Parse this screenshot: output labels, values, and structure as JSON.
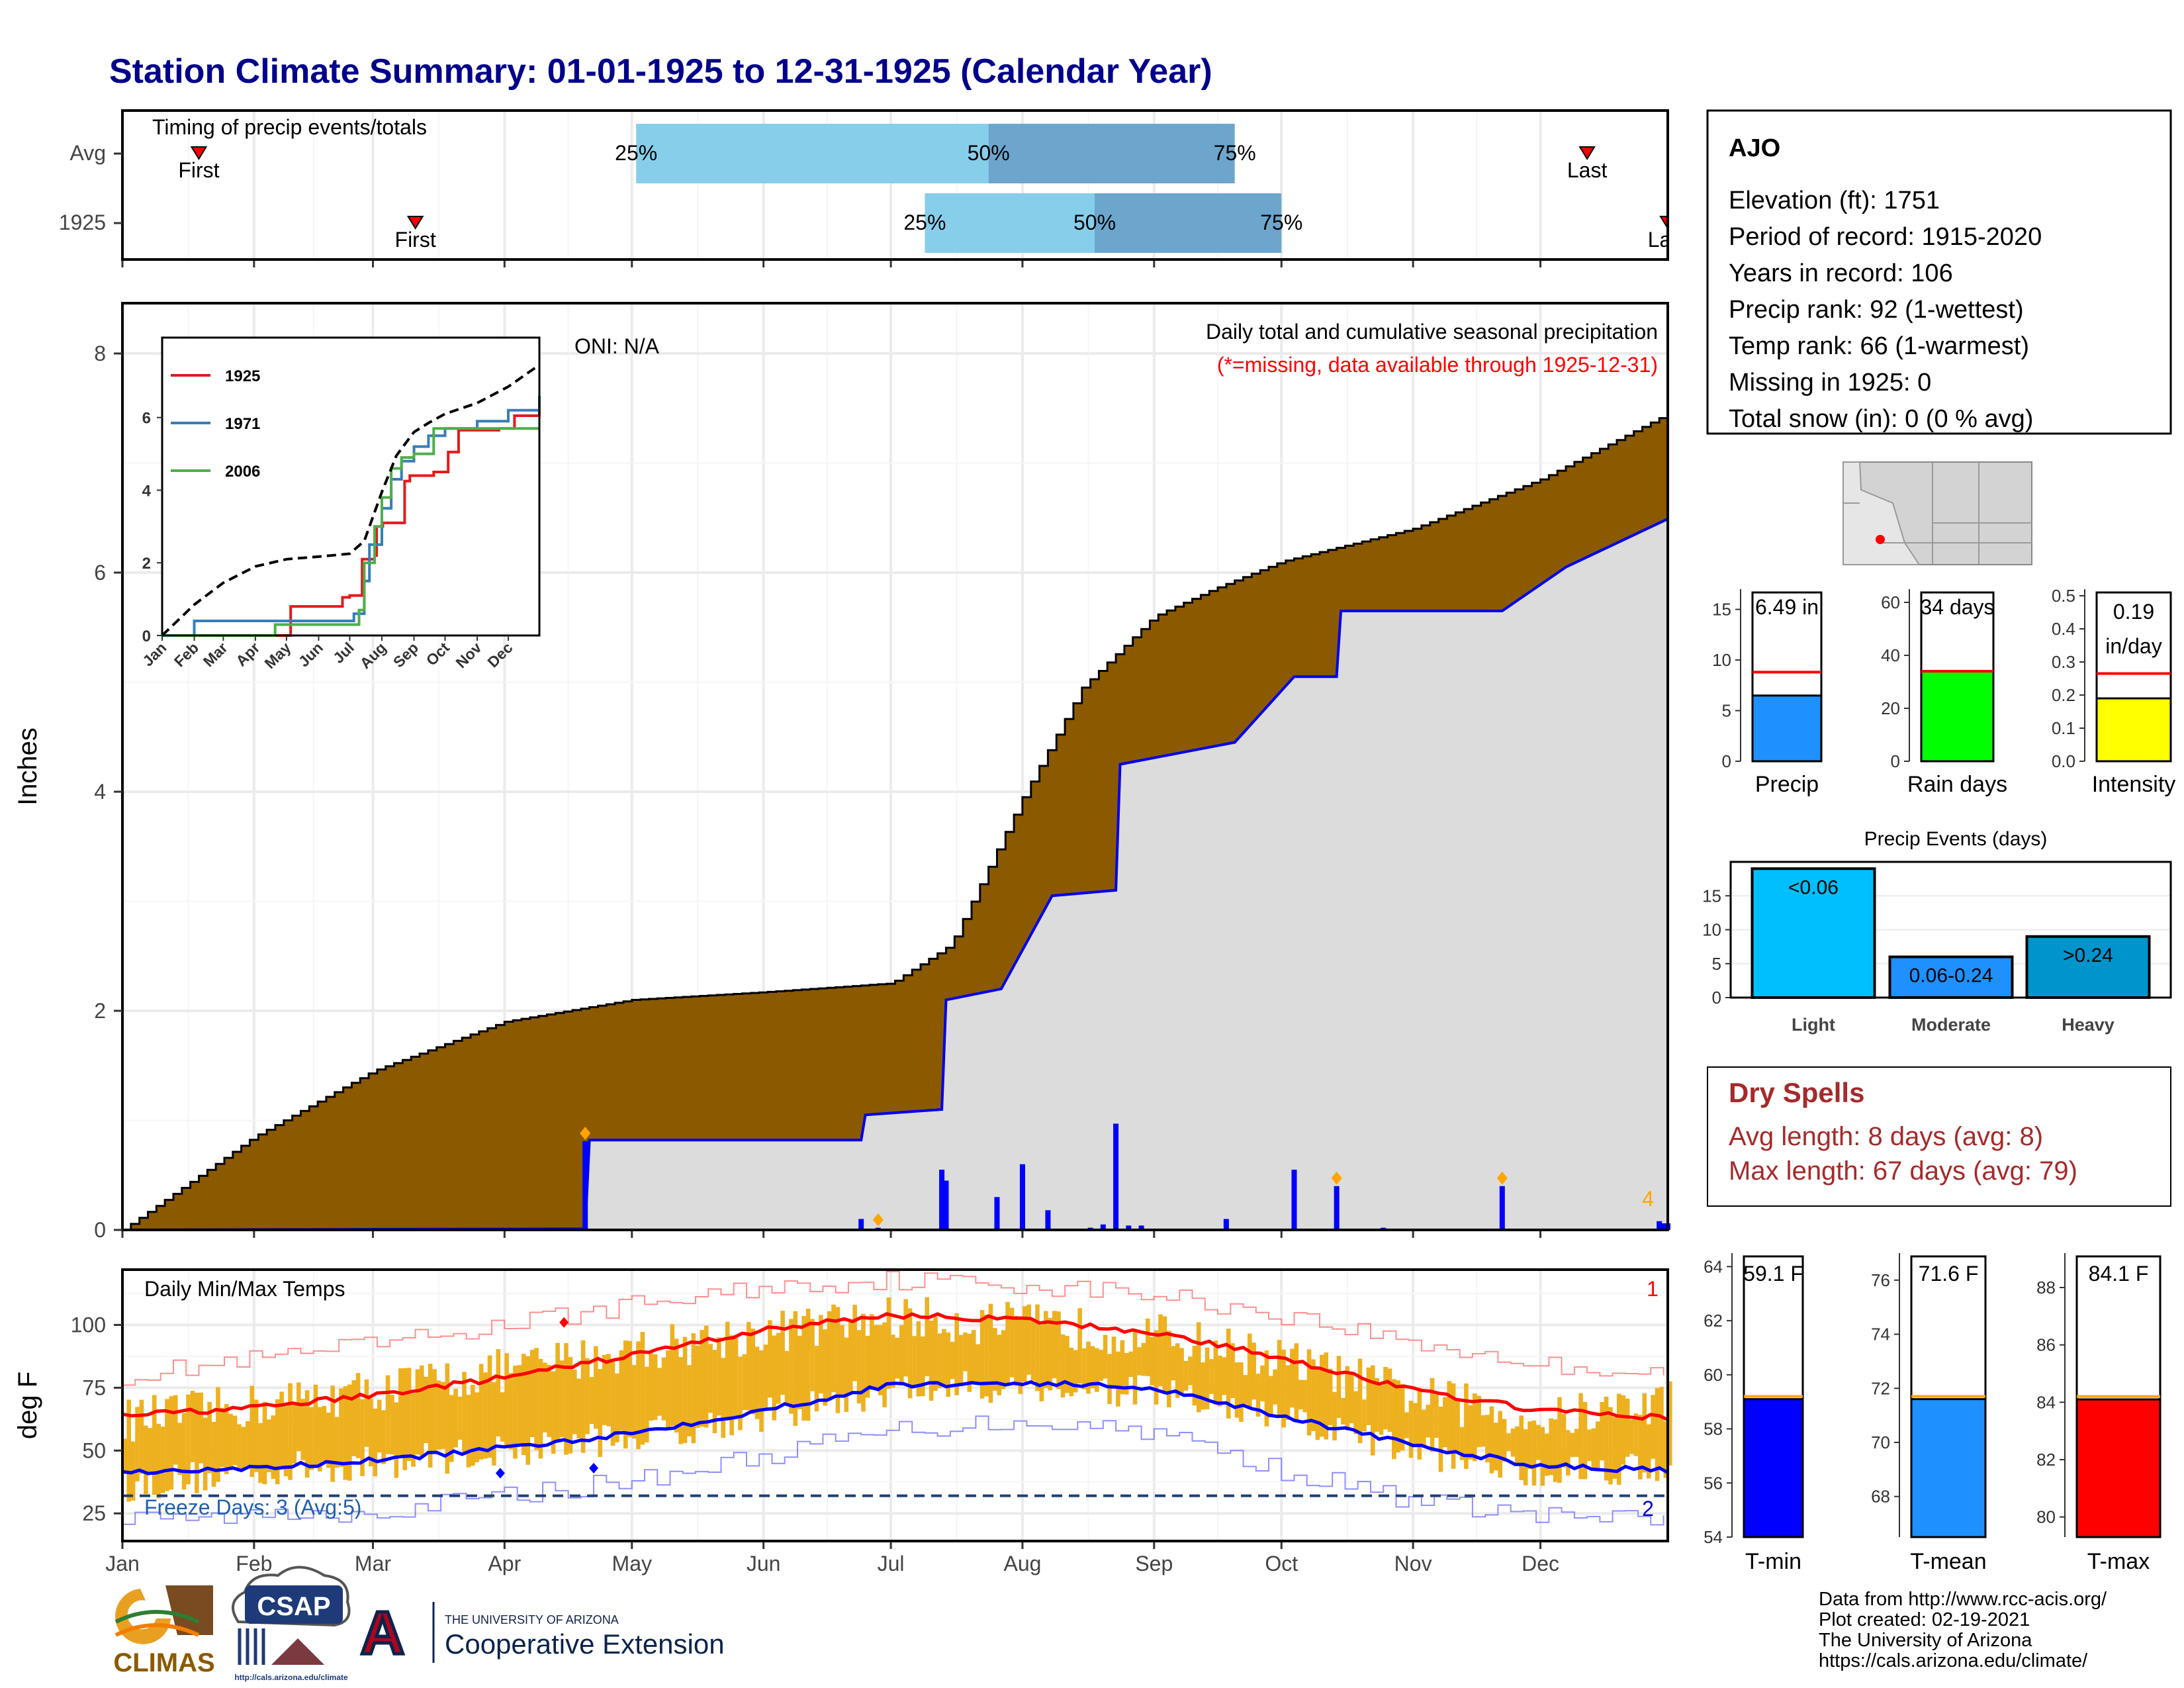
{
  "title": "Station Climate Summary: 01-01-1925 to 12-31-1925 (Calendar Year)",
  "colors": {
    "title": "#00008B",
    "fill_normal": "#8B5A00",
    "fill_observed": "#DCDCDC",
    "obs_line": "#0000EE",
    "bar_light": "#87CEEB",
    "bar_dark": "#6CA6CD",
    "temp_bar": "#EDB120",
    "norm_max": "#FF0000",
    "norm_min": "#0000FF",
    "freeze_line": "#1F3F73",
    "dry_spells": "#A52A2A"
  },
  "timing": {
    "label": "Timing of precip events/totals",
    "rows": [
      {
        "name": "Avg",
        "first_label": "First",
        "last_label": "Last",
        "first_date": "1925-01-19",
        "last_date": "1925-12-12",
        "p25": "1925-05-02",
        "p50": "1925-07-24",
        "p75": "1925-09-20",
        "p25_label": "25%",
        "p50_label": "50%",
        "p75_label": "75%"
      },
      {
        "name": "1925",
        "first_label": "First",
        "last_label": "Last",
        "first_date": "1925-03-11",
        "last_date": "1925-12-31",
        "p25": "1925-07-09",
        "p50": "1925-08-18",
        "p75": "1925-10-01",
        "p25_label": "25%",
        "p50_label": "50%",
        "p75_label": "75%"
      }
    ]
  },
  "precip_panel": {
    "ylabel": "Inches",
    "yticks": [
      "0",
      "2",
      "4",
      "6",
      "8"
    ],
    "oni": "ONI: N/A",
    "note1": "Daily total and cumulative seasonal precipitation",
    "note2": "(*=missing, data available through 1925-12-31)",
    "count_marker": "4"
  },
  "inset": {
    "legend": [
      "1925",
      "1971",
      "2006"
    ],
    "legend_colors": [
      "#E41A1C",
      "#377EB8",
      "#4DAF4A"
    ],
    "yticks": [
      "0",
      "2",
      "4",
      "6"
    ],
    "xticks": [
      "Jan",
      "Feb",
      "Mar",
      "Apr",
      "May",
      "Jun",
      "Jul",
      "Aug",
      "Sep",
      "Oct",
      "Nov",
      "Dec"
    ]
  },
  "temp_panel": {
    "ylabel": "deg F",
    "label": "Daily Min/Max Temps",
    "freeze": "Freeze Days: 3 (Avg:5)",
    "yticks": [
      "25",
      "50",
      "75",
      "100"
    ],
    "count_top": "1",
    "count_bottom": "2"
  },
  "months": [
    "Jan",
    "Feb",
    "Mar",
    "Apr",
    "May",
    "Jun",
    "Jul",
    "Aug",
    "Sep",
    "Oct",
    "Nov",
    "Dec"
  ],
  "station": {
    "name": "AJO",
    "lines": [
      "Elevation (ft): 1751",
      "Period of record: 1915-2020",
      "Years in record: 106",
      "Precip rank: 92 (1-wettest)",
      "Temp rank: 66 (1-warmest)",
      "Missing in 1925: 0",
      "Total snow (in): 0 (0 % avg)"
    ]
  },
  "mini_bars": [
    {
      "label": "Precip",
      "value_text": "6.49 in",
      "value": 6.49,
      "avg": 8.8,
      "ylim": [
        0,
        17
      ],
      "yticks": [
        "0",
        "5",
        "10",
        "15"
      ],
      "color": "#1E90FF"
    },
    {
      "label": "Rain days",
      "value_text": "34 days",
      "value": 34,
      "avg": 34,
      "ylim": [
        0,
        65
      ],
      "yticks": [
        "0",
        "20",
        "40",
        "60"
      ],
      "color": "#00FF00"
    },
    {
      "label": "Intensity",
      "value_text_1": "0.19",
      "value_text_2": "in/day",
      "value": 0.19,
      "avg": 0.265,
      "ylim": [
        0,
        0.52
      ],
      "yticks": [
        "0.0",
        "0.1",
        "0.2",
        "0.3",
        "0.4",
        "0.5"
      ],
      "color": "#FFFF00"
    }
  ],
  "events": {
    "title": "Precip Events (days)",
    "yticks": [
      "0",
      "5",
      "10",
      "15"
    ],
    "bars": [
      {
        "label": "Light",
        "value": 19,
        "text": "<0.06",
        "color": "#00BFFF"
      },
      {
        "label": "Moderate",
        "value": 6,
        "text": "0.06-0.24",
        "color": "#1E90FF"
      },
      {
        "label": "Heavy",
        "value": 9,
        "text": ">0.24",
        "color": "#0094CD"
      }
    ]
  },
  "dry_spells": {
    "title": "Dry Spells",
    "line1": "Avg length: 8 days (avg: 8)",
    "line2": "Max length: 67 days (avg: 79)"
  },
  "temp_bars": [
    {
      "label": "T-min",
      "value_text": "59.1 F",
      "value": 59.1,
      "avg": 59.2,
      "ylim": [
        54,
        64.5
      ],
      "yticks": [
        "54",
        "56",
        "58",
        "60",
        "62",
        "64"
      ],
      "color": "#0000FF"
    },
    {
      "label": "T-mean",
      "value_text": "71.6 F",
      "value": 71.6,
      "avg": 71.7,
      "ylim": [
        66.5,
        77
      ],
      "yticks": [
        "68",
        "70",
        "72",
        "74",
        "76"
      ],
      "color": "#1E90FF"
    },
    {
      "label": "T-max",
      "value_text": "84.1 F",
      "value": 84.1,
      "avg": 84.2,
      "ylim": [
        79.3,
        89.2
      ],
      "yticks": [
        "80",
        "82",
        "84",
        "86",
        "88"
      ],
      "color": "#FF0000"
    }
  ],
  "logos": {
    "climas": "CLIMAS",
    "csap": "CSAP",
    "csap_url": "http://cals.arizona.edu/climate",
    "ua_line1": "THE UNIVERSITY OF ARIZONA",
    "ua_line2": "Cooperative Extension",
    "ua_letter": "A"
  },
  "credits": [
    "Data from http://www.rcc-acis.org/",
    "Plot created: 02-19-2021",
    "The University of Arizona",
    "https://cals.arizona.edu/climate/"
  ],
  "chart_data": [
    {
      "type": "area",
      "title": "Daily total and cumulative seasonal precipitation",
      "ylabel": "Inches",
      "ylim": [
        0,
        8.5
      ],
      "x_unit": "date",
      "series": [
        {
          "name": "1925",
          "x": [
            "1925-01-01",
            "1925-04-20",
            "1925-04-21",
            "1925-06-24",
            "1925-06-25",
            "1925-07-13",
            "1925-07-14",
            "1925-07-27",
            "1925-08-08",
            "1925-08-23",
            "1925-08-24",
            "1925-09-20",
            "1925-10-04",
            "1925-10-14",
            "1925-10-15",
            "1925-11-22",
            "1925-12-07",
            "1925-12-31"
          ],
          "y": [
            0,
            0.01,
            0.82,
            0.82,
            1.05,
            1.1,
            2.1,
            2.2,
            3.05,
            3.1,
            4.25,
            4.45,
            5.05,
            5.05,
            5.65,
            5.65,
            6.05,
            6.49
          ]
        },
        {
          "name": "Avg",
          "x": [
            "1925-01-01",
            "1925-02-01",
            "1925-03-01",
            "1925-04-01",
            "1925-05-01",
            "1925-06-01",
            "1925-07-01",
            "1925-07-15",
            "1925-08-01",
            "1925-08-15",
            "1925-09-01",
            "1925-09-15",
            "1925-10-01",
            "1925-11-01",
            "1925-12-01",
            "1925-12-31"
          ],
          "y": [
            0,
            0.85,
            1.45,
            1.9,
            2.1,
            2.17,
            2.25,
            2.6,
            3.95,
            4.95,
            5.6,
            5.85,
            6.1,
            6.4,
            6.85,
            7.45
          ]
        }
      ],
      "daily_precip": {
        "x": [
          "1925-04-20",
          "1925-06-24",
          "1925-06-28",
          "1925-07-13",
          "1925-07-14",
          "1925-07-26",
          "1925-08-01",
          "1925-08-07",
          "1925-08-17",
          "1925-08-20",
          "1925-08-23",
          "1925-08-26",
          "1925-08-29",
          "1925-09-18",
          "1925-10-04",
          "1925-10-14",
          "1925-10-25",
          "1925-11-22",
          "1925-12-29",
          "1925-12-30",
          "1925-12-31"
        ],
        "y": [
          0.81,
          0.1,
          0.02,
          0.55,
          0.45,
          0.3,
          0.6,
          0.18,
          0.02,
          0.05,
          0.97,
          0.04,
          0.04,
          0.1,
          0.55,
          0.4,
          0.02,
          0.4,
          0.08,
          0.06,
          0.06
        ]
      },
      "markers_x": [
        "1925-04-20",
        "1925-06-28",
        "1925-10-14",
        "1925-11-22"
      ]
    },
    {
      "type": "line",
      "title": "",
      "ylim": [
        0,
        8.2
      ],
      "x_unit": "date",
      "series": [
        {
          "name": "1925",
          "x": [
            "1925-01-01",
            "1925-04-15",
            "1925-05-05",
            "1925-06-10",
            "1925-06-24",
            "1925-07-01",
            "1925-07-13",
            "1925-07-25",
            "1925-07-27",
            "1925-08-02",
            "1925-08-18",
            "1925-08-23",
            "1925-08-28",
            "1925-09-20",
            "1925-10-04",
            "1925-10-14",
            "1925-10-30",
            "1925-11-22",
            "1925-12-07",
            "1925-12-31"
          ],
          "y": [
            0,
            0,
            0.8,
            0.8,
            1.05,
            1.1,
            2.1,
            2.2,
            3.0,
            3.1,
            3.1,
            4.25,
            4.4,
            4.5,
            5.05,
            5.65,
            5.65,
            5.7,
            6.05,
            6.49
          ]
        },
        {
          "name": "1971",
          "x": [
            "1925-01-01",
            "1925-02-01",
            "1925-05-10",
            "1925-07-05",
            "1925-07-15",
            "1925-07-20",
            "1925-08-01",
            "1925-08-10",
            "1925-08-20",
            "1925-09-01",
            "1925-09-15",
            "1925-10-01",
            "1925-11-01",
            "1925-12-01",
            "1925-12-31"
          ],
          "y": [
            0,
            0.4,
            0.4,
            0.6,
            1.5,
            2.5,
            3.5,
            4.3,
            4.8,
            5.2,
            5.5,
            5.7,
            5.9,
            6.2,
            6.6
          ]
        },
        {
          "name": "2006",
          "x": [
            "1925-01-01",
            "1925-04-01",
            "1925-04-20",
            "1925-07-10",
            "1925-07-15",
            "1925-07-25",
            "1925-08-01",
            "1925-08-10",
            "1925-08-20",
            "1925-09-01",
            "1925-09-20",
            "1925-12-31"
          ],
          "y": [
            0,
            0,
            0.3,
            0.7,
            2.0,
            3.0,
            3.8,
            4.6,
            4.9,
            5.0,
            5.7,
            5.7
          ]
        },
        {
          "name": "Avg",
          "x": [
            "1925-01-01",
            "1925-02-01",
            "1925-03-01",
            "1925-04-01",
            "1925-05-01",
            "1925-06-01",
            "1925-07-01",
            "1925-07-15",
            "1925-08-01",
            "1925-08-15",
            "1925-09-01",
            "1925-09-15",
            "1925-10-01",
            "1925-11-01",
            "1925-12-01",
            "1925-12-31"
          ],
          "y": [
            0,
            0.85,
            1.45,
            1.9,
            2.1,
            2.17,
            2.25,
            2.6,
            3.95,
            4.95,
            5.6,
            5.85,
            6.1,
            6.4,
            6.85,
            7.45
          ]
        }
      ]
    },
    {
      "type": "bar",
      "title": "Daily Min/Max Temps",
      "ylabel": "deg F",
      "ylim": [
        14,
        122
      ],
      "x_unit": "date",
      "series": [
        {
          "name": "normal max",
          "x": [
            "1925-01-01",
            "1925-02-01",
            "1925-03-01",
            "1925-04-01",
            "1925-05-01",
            "1925-06-01",
            "1925-07-01",
            "1925-08-01",
            "1925-09-01",
            "1925-10-01",
            "1925-11-01",
            "1925-12-01",
            "1925-12-31"
          ],
          "y": [
            64,
            67,
            72,
            79,
            88,
            98,
            104,
            102,
            97,
            87,
            74,
            66,
            63
          ]
        },
        {
          "name": "normal min",
          "x": [
            "1925-01-01",
            "1925-02-01",
            "1925-03-01",
            "1925-04-01",
            "1925-05-01",
            "1925-06-01",
            "1925-07-01",
            "1925-08-01",
            "1925-09-01",
            "1925-10-01",
            "1925-11-01",
            "1925-12-01",
            "1925-12-31"
          ],
          "y": [
            41,
            43,
            46,
            51,
            57,
            66,
            76,
            77,
            75,
            64,
            52,
            44,
            42
          ]
        },
        {
          "name": "record max",
          "x": [
            "1925-01-01",
            "1925-02-01",
            "1925-03-01",
            "1925-04-01",
            "1925-05-01",
            "1925-06-01",
            "1925-07-01",
            "1925-08-01",
            "1925-09-01",
            "1925-10-01",
            "1925-11-01",
            "1925-12-01",
            "1925-12-31"
          ],
          "y": [
            80,
            86,
            92,
            100,
            108,
            115,
            118,
            116,
            112,
            104,
            93,
            84,
            81
          ]
        },
        {
          "name": "record min",
          "x": [
            "1925-01-01",
            "1925-02-01",
            "1925-03-01",
            "1925-04-01",
            "1925-05-01",
            "1925-06-01",
            "1925-07-01",
            "1925-08-01",
            "1925-09-01",
            "1925-10-01",
            "1925-11-01",
            "1925-12-01",
            "1925-12-31"
          ],
          "y": [
            22,
            24,
            26,
            32,
            38,
            48,
            58,
            62,
            58,
            42,
            30,
            24,
            22
          ]
        },
        {
          "name": "1925 max",
          "x": [
            "1925-01-01",
            "1925-02-01",
            "1925-03-01",
            "1925-04-01",
            "1925-05-01",
            "1925-06-01",
            "1925-07-01",
            "1925-08-01",
            "1925-09-01",
            "1925-10-01",
            "1925-11-01",
            "1925-12-01",
            "1925-12-31"
          ],
          "y": [
            62,
            68,
            74,
            82,
            90,
            97,
            103,
            100,
            96,
            86,
            72,
            62,
            70
          ]
        },
        {
          "name": "1925 min",
          "x": [
            "1925-01-01",
            "1925-02-01",
            "1925-03-01",
            "1925-04-01",
            "1925-05-01",
            "1925-06-01",
            "1925-07-01",
            "1925-08-01",
            "1925-09-01",
            "1925-10-01",
            "1925-11-01",
            "1925-12-01",
            "1925-12-31"
          ],
          "y": [
            36,
            42,
            45,
            50,
            56,
            64,
            74,
            76,
            73,
            62,
            50,
            42,
            44
          ]
        }
      ],
      "freeze_threshold": 32,
      "markers": [
        {
          "x": "1925-04-15",
          "y": 101,
          "color": "#FF0000"
        },
        {
          "x": "1925-03-31",
          "y": 41,
          "color": "#0000FF"
        },
        {
          "x": "1925-04-22",
          "y": 43,
          "color": "#0000FF"
        }
      ]
    }
  ]
}
